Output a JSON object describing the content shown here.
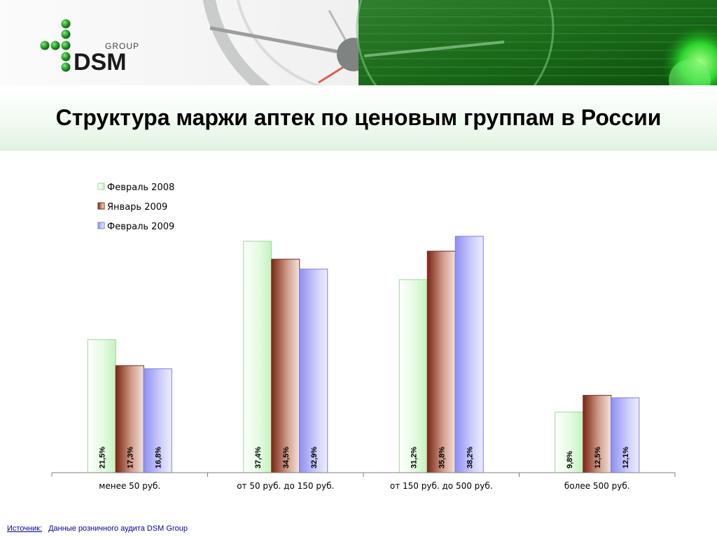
{
  "logo": {
    "brand": "DSM",
    "group": "GROUP"
  },
  "slide": {
    "title": "Структура маржи аптек по ценовым группам в России"
  },
  "source": {
    "label": "Источник:",
    "text": "Данные розничного аудита DSM Group"
  },
  "colors": {
    "series_feb2008": "#ddfbd8",
    "series_jan2009": "#9c3a26",
    "series_feb2009": "#a9a9f7",
    "source_text": "#0000a0"
  },
  "chart_data": {
    "type": "bar",
    "title": "",
    "xlabel": "",
    "ylabel": "",
    "ylim": [
      0,
      40
    ],
    "grid": false,
    "legend_position": "top-center",
    "categories": [
      "менее 50 руб.",
      "от 50 руб. до 150 руб.",
      "от 150 руб. до 500 руб.",
      "более 500 руб."
    ],
    "series": [
      {
        "name": "Февраль 2008",
        "values": [
          21.5,
          37.4,
          31.2,
          9.8
        ],
        "labels": [
          "21,5%",
          "37,4%",
          "31,2%",
          "9,8%"
        ]
      },
      {
        "name": "Январь 2009",
        "values": [
          17.3,
          34.5,
          35.8,
          12.5
        ],
        "labels": [
          "17,3%",
          "34,5%",
          "35,8%",
          "12,5%"
        ]
      },
      {
        "name": "Февраль 2009",
        "values": [
          16.8,
          32.9,
          38.2,
          12.1
        ],
        "labels": [
          "16,8%",
          "32,9%",
          "38,2%",
          "12,1%"
        ]
      }
    ]
  }
}
